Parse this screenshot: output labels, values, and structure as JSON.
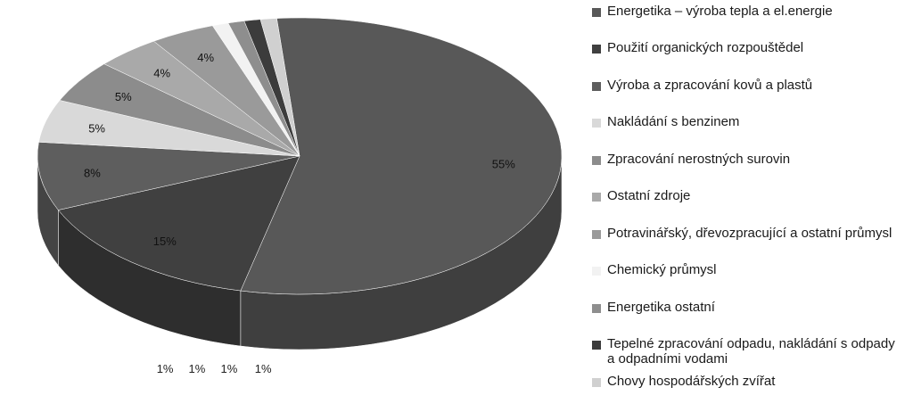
{
  "chart_data": {
    "type": "pie",
    "title": "",
    "labels": [
      "Energetika – výroba tepla a el.energie",
      "Použití organických rozpouštědel",
      "Výroba a zpracování kovů a plastů",
      "Nakládání s benzinem",
      "Zpracování nerostných surovin",
      "Ostatní zdroje",
      "Potravinářský, dřevozpracující a ostatní průmysl",
      "Chemický průmysl",
      "Energetika ostatní",
      "Tepelné zpracování odpadu, nakládání s odpady a odpadními vodami",
      "Chovy hospodářských zvířat"
    ],
    "values": [
      55,
      15,
      8,
      5,
      5,
      4,
      4,
      1,
      1,
      1,
      1
    ],
    "data_labels": [
      "55%",
      "15%",
      "8%",
      "5%",
      "5%",
      "4%",
      "4%",
      "1%",
      "1%",
      "1%",
      "1%"
    ],
    "colors": [
      "#585858",
      "#404040",
      "#5e5e5e",
      "#d9d9d9",
      "#8c8c8c",
      "#a9a9a9",
      "#9a9a9a",
      "#f2f2f2",
      "#8e8e8e",
      "#3c3c3c",
      "#d0d0d0"
    ],
    "legend_position": "right",
    "style": "3d"
  },
  "legend": {
    "items": [
      {
        "label": "Energetika – výroba tepla a el.energie",
        "color": "#585858"
      },
      {
        "label": "Použití organických rozpouštědel",
        "color": "#404040"
      },
      {
        "label": "Výroba a zpracování kovů a plastů",
        "color": "#5e5e5e"
      },
      {
        "label": "Nakládání s benzinem",
        "color": "#d9d9d9"
      },
      {
        "label": "Zpracování nerostných surovin",
        "color": "#8c8c8c"
      },
      {
        "label": "Ostatní zdroje",
        "color": "#a9a9a9"
      },
      {
        "label": "Potravinářský, dřevozpracující a ostatní průmysl",
        "color": "#9a9a9a"
      },
      {
        "label": "Chemický průmysl",
        "color": "#f2f2f2"
      },
      {
        "label": "Energetika ostatní",
        "color": "#8e8e8e"
      },
      {
        "label": "Tepelné zpracování odpadu, nakládání s odpady a odpadními vodami",
        "color": "#3c3c3c"
      },
      {
        "label": "Chovy hospodářských zvířat",
        "color": "#d0d0d0"
      }
    ]
  }
}
